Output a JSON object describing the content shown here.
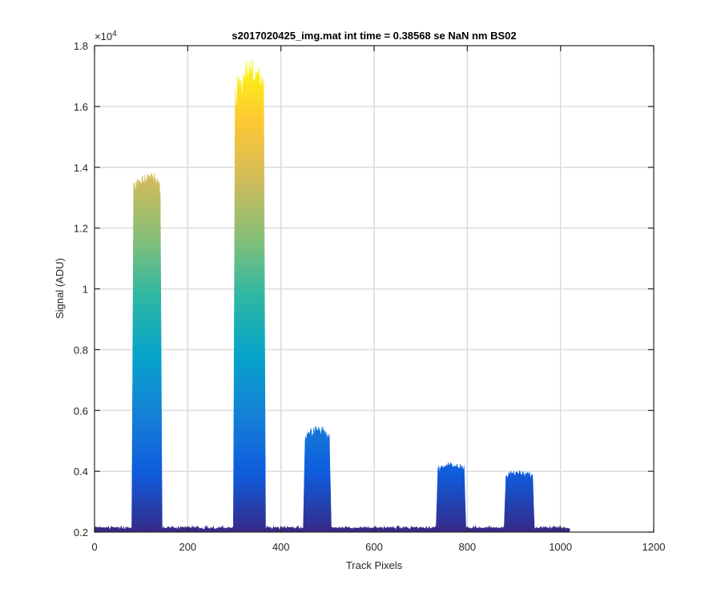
{
  "chart_data": {
    "type": "area",
    "title": "s2017020425_img.mat int time = 0.38568 se  NaN nm BS02",
    "xlabel": "Track Pixels",
    "ylabel": "Signal (ADU)",
    "y_exponent_label": "×10",
    "y_exponent_power": "4",
    "xlim": [
      0,
      1200
    ],
    "ylim": [
      2000,
      18000
    ],
    "x_ticks": [
      0,
      200,
      400,
      600,
      800,
      1000,
      1200
    ],
    "x_tick_labels": [
      "0",
      "200",
      "400",
      "600",
      "800",
      "1000",
      "1200"
    ],
    "y_ticks": [
      2000,
      4000,
      6000,
      8000,
      10000,
      12000,
      14000,
      16000,
      18000
    ],
    "y_tick_labels": [
      "0.2",
      "0.4",
      "0.6",
      "0.8",
      "1",
      "1.2",
      "1.4",
      "1.6",
      "1.8"
    ],
    "grid": true,
    "baseline": 2100,
    "x_extent": [
      0,
      1020
    ],
    "colormap": [
      "#352a87",
      "#0f5cdd",
      "#1481d6",
      "#06a4ca",
      "#2eb7a4",
      "#87bf77",
      "#d1bb59",
      "#fec832",
      "#f9fb0e"
    ],
    "color_range": [
      2000,
      17500
    ],
    "peaks": [
      {
        "x_start": 80,
        "x_end": 145,
        "plateau": 13200,
        "max": 13750
      },
      {
        "x_start": 298,
        "x_end": 367,
        "plateau": 16200,
        "max": 17350
      },
      {
        "x_start": 448,
        "x_end": 508,
        "plateau": 5050,
        "max": 5420
      },
      {
        "x_start": 733,
        "x_end": 797,
        "plateau": 4050,
        "max": 4230
      },
      {
        "x_start": 879,
        "x_end": 944,
        "plateau": 3800,
        "max": 3990
      }
    ]
  }
}
